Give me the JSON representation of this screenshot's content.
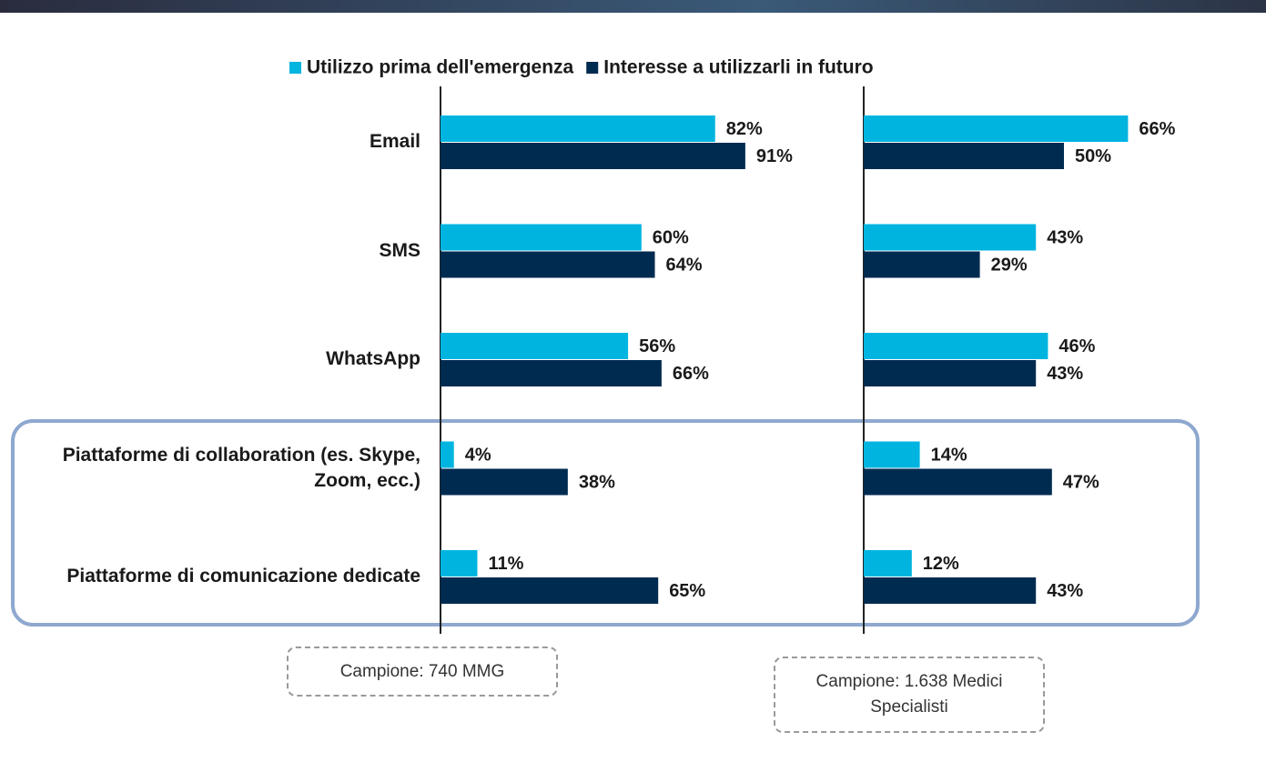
{
  "chart_data": {
    "type": "bar",
    "orientation": "horizontal",
    "categories": [
      "Email",
      "SMS",
      "WhatsApp",
      "Piattaforme di collaboration (es. Skype, Zoom, ecc.)",
      "Piattaforme di comunicazione dedicate"
    ],
    "series": [
      {
        "name": "Utilizzo prima dell'emergenza",
        "color": "#00b4e0"
      },
      {
        "name": "Interesse a utilizzarli in futuro",
        "color": "#002b50"
      }
    ],
    "xlim": [
      0,
      100
    ],
    "panels": [
      {
        "annotation": "Campione: 740 MMG",
        "values": [
          [
            82,
            60,
            56,
            4,
            11
          ],
          [
            91,
            64,
            66,
            38,
            65
          ]
        ],
        "value_labels": [
          [
            "82%",
            "60%",
            "56%",
            "4%",
            "11%"
          ],
          [
            "91%",
            "64%",
            "66%",
            "38%",
            "65%"
          ]
        ]
      },
      {
        "annotation": "Campione: 1.638 Medici Specialisti",
        "values": [
          [
            66,
            43,
            46,
            14,
            12
          ],
          [
            50,
            29,
            43,
            47,
            43
          ]
        ],
        "value_labels": [
          [
            "66%",
            "43%",
            "46%",
            "14%",
            "12%"
          ],
          [
            "50%",
            "29%",
            "43%",
            "47%",
            "43%"
          ]
        ]
      }
    ]
  }
}
